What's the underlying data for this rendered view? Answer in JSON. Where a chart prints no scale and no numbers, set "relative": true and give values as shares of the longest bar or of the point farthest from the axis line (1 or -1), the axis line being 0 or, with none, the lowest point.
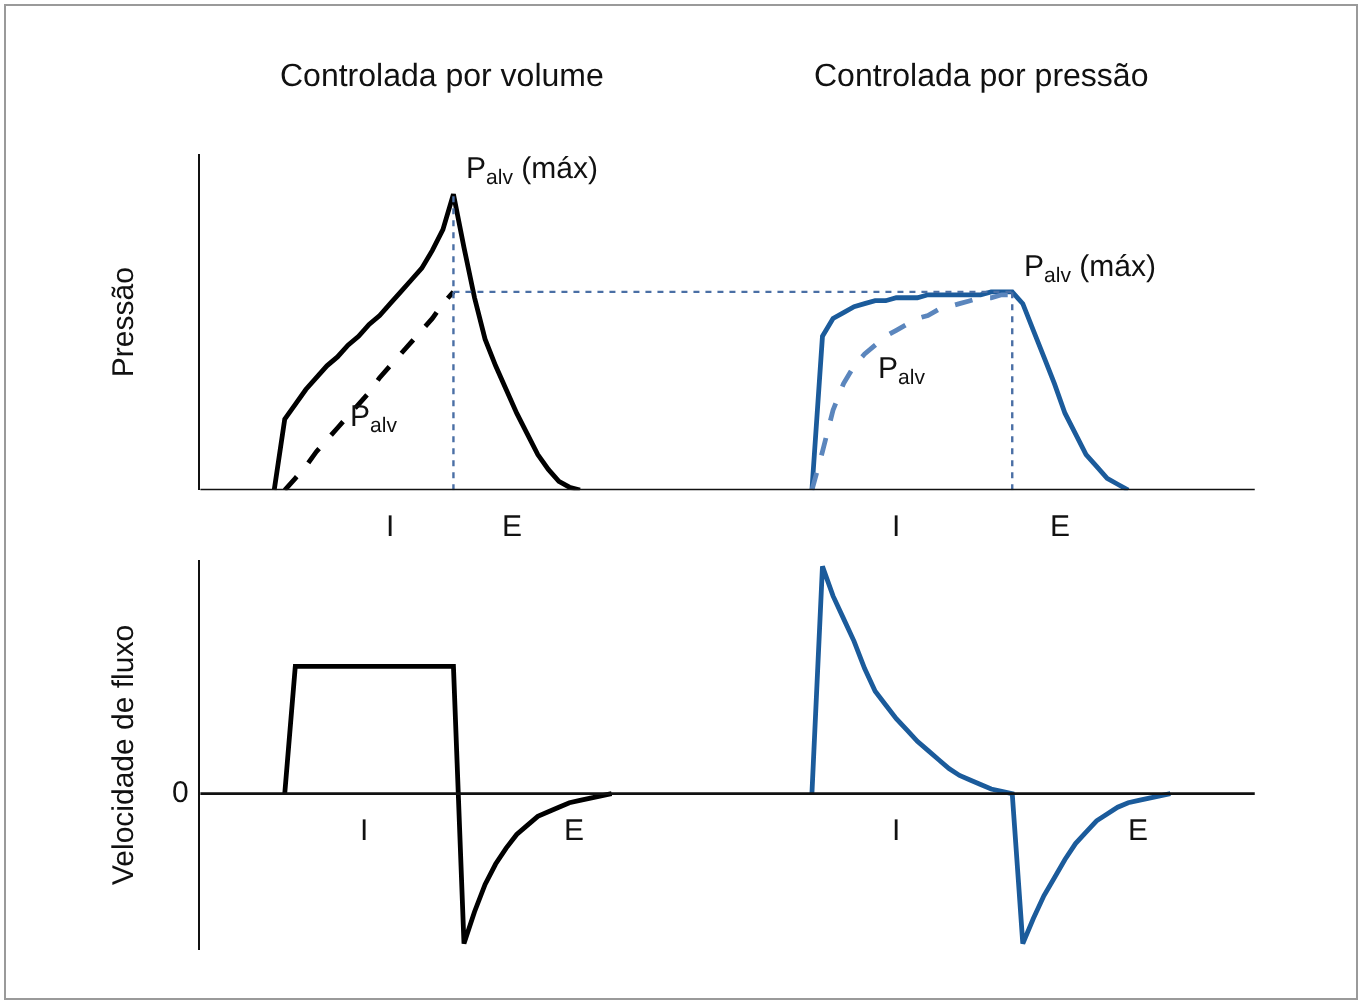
{
  "chart_data": [
    {
      "type": "line",
      "relative": true,
      "ylabel": "Pressão",
      "categories": [
        null,
        null,
        null,
        null,
        null,
        null,
        null,
        null,
        null,
        null,
        null,
        null,
        null,
        null,
        null,
        null,
        null,
        null,
        null,
        null,
        null,
        null,
        null,
        null,
        null,
        null,
        null,
        null,
        null,
        null,
        null,
        null,
        null,
        null,
        null,
        null,
        null,
        null,
        null,
        null,
        null,
        null,
        null,
        null,
        null,
        null,
        null,
        null,
        null,
        null,
        null,
        null,
        null,
        null,
        null,
        null,
        null,
        null,
        null,
        null,
        null,
        null,
        null,
        null,
        null,
        null,
        null,
        null,
        null,
        null,
        null,
        null,
        null,
        null,
        null,
        null,
        null,
        null,
        null,
        null,
        null,
        null,
        null,
        null,
        null,
        null,
        null,
        null,
        null,
        null,
        null,
        null,
        null,
        null,
        null,
        null,
        null,
        null,
        null,
        null,
        null
      ],
      "series": [
        {
          "color": "#000000",
          "line_style": "solid",
          "values": [
            null,
            null,
            null,
            null,
            null,
            null,
            null,
            0,
            0.24,
            0.29,
            0.34,
            0.38,
            0.42,
            0.45,
            0.49,
            0.52,
            0.56,
            0.59,
            0.63,
            0.67,
            0.71,
            0.75,
            0.81,
            0.88,
            1,
            0.82,
            0.65,
            0.51,
            0.42,
            0.34,
            0.26,
            0.19,
            0.12,
            0.07,
            0.03,
            0.01,
            0,
            null,
            null,
            null,
            null,
            null,
            null,
            null,
            null,
            null,
            null,
            null,
            null,
            null,
            null,
            null,
            null,
            null,
            null,
            null,
            null,
            null,
            null,
            null,
            null,
            null,
            null,
            null,
            null,
            null,
            null,
            null,
            null,
            null,
            null,
            null,
            null,
            null,
            null,
            null,
            null,
            null,
            null,
            null,
            null,
            null,
            null,
            null,
            null,
            null,
            null,
            null,
            null,
            null,
            null,
            null,
            null,
            null,
            null,
            null,
            null,
            null,
            null,
            null,
            null
          ]
        },
        {
          "color": "#000000",
          "line_style": "dashed",
          "values": [
            null,
            null,
            null,
            null,
            null,
            null,
            null,
            null,
            0,
            0.04,
            0.08,
            0.13,
            0.17,
            0.21,
            0.25,
            0.29,
            0.33,
            0.38,
            0.42,
            0.46,
            0.5,
            0.54,
            0.58,
            0.63,
            0.67,
            null,
            null,
            null,
            null,
            null,
            null,
            null,
            null,
            null,
            null,
            null,
            null,
            null,
            null,
            null,
            null,
            null,
            null,
            null,
            null,
            null,
            null,
            null,
            null,
            null,
            null,
            null,
            null,
            null,
            null,
            null,
            null,
            null,
            null,
            null,
            null,
            null,
            null,
            null,
            null,
            null,
            null,
            null,
            null,
            null,
            null,
            null,
            null,
            null,
            null,
            null,
            null,
            null,
            null,
            null,
            null,
            null,
            null,
            null,
            null,
            null,
            null,
            null,
            null,
            null,
            null,
            null,
            null,
            null,
            null,
            null,
            null,
            null,
            null,
            null,
            null
          ]
        },
        {
          "color": "#1b5b9b",
          "line_style": "solid",
          "values": [
            null,
            null,
            null,
            null,
            null,
            null,
            null,
            null,
            null,
            null,
            null,
            null,
            null,
            null,
            null,
            null,
            null,
            null,
            null,
            null,
            null,
            null,
            null,
            null,
            null,
            null,
            null,
            null,
            null,
            null,
            null,
            null,
            null,
            null,
            null,
            null,
            null,
            null,
            null,
            null,
            null,
            null,
            null,
            null,
            null,
            null,
            null,
            null,
            null,
            null,
            null,
            null,
            null,
            null,
            null,
            null,
            null,
            null,
            0,
            0.52,
            0.58,
            0.6,
            0.62,
            0.63,
            0.64,
            0.64,
            0.65,
            0.65,
            0.65,
            0.66,
            0.66,
            0.66,
            0.66,
            0.66,
            0.66,
            0.67,
            0.67,
            0.67,
            0.63,
            0.54,
            0.45,
            0.36,
            0.26,
            0.19,
            0.12,
            0.08,
            0.04,
            0.02,
            0,
            null,
            null,
            null,
            null,
            null,
            null,
            null,
            null,
            null,
            null,
            null,
            null
          ]
        },
        {
          "color": "#5b86bd",
          "line_style": "dashed",
          "values": [
            null,
            null,
            null,
            null,
            null,
            null,
            null,
            null,
            null,
            null,
            null,
            null,
            null,
            null,
            null,
            null,
            null,
            null,
            null,
            null,
            null,
            null,
            null,
            null,
            null,
            null,
            null,
            null,
            null,
            null,
            null,
            null,
            null,
            null,
            null,
            null,
            null,
            null,
            null,
            null,
            null,
            null,
            null,
            null,
            null,
            null,
            null,
            null,
            null,
            null,
            null,
            null,
            null,
            null,
            null,
            null,
            null,
            null,
            0,
            0.13,
            0.27,
            0.36,
            0.42,
            0.46,
            0.49,
            0.52,
            0.54,
            0.56,
            0.58,
            0.59,
            0.61,
            0.62,
            0.63,
            0.64,
            0.65,
            0.65,
            0.66,
            0.66,
            null,
            null,
            null,
            null,
            null,
            null,
            null,
            null,
            null,
            null,
            null,
            null,
            null,
            null,
            null,
            null,
            null,
            null,
            null,
            null,
            null,
            null,
            null
          ]
        },
        {
          "color": "#4a6fa5",
          "line_style": "dotted",
          "values": [
            null,
            null,
            null,
            null,
            null,
            null,
            null,
            null,
            null,
            null,
            null,
            null,
            null,
            null,
            null,
            null,
            null,
            null,
            null,
            null,
            null,
            null,
            null,
            null,
            0.67,
            0.67,
            0.67,
            0.67,
            0.67,
            0.67,
            0.67,
            0.67,
            0.67,
            0.67,
            0.67,
            0.67,
            0.67,
            0.67,
            0.67,
            0.67,
            0.67,
            0.67,
            0.67,
            0.67,
            0.67,
            0.67,
            0.67,
            0.67,
            0.67,
            0.67,
            0.67,
            0.67,
            0.67,
            0.67,
            0.67,
            0.67,
            0.67,
            0.67,
            0.67,
            0.67,
            0.67,
            0.67,
            0.67,
            0.67,
            0.67,
            0.67,
            0.67,
            0.67,
            0.67,
            0.67,
            0.67,
            0.67,
            0.67,
            0.67,
            0.67,
            0.67,
            0.67,
            0.67,
            null,
            null,
            null,
            null,
            null,
            null,
            null,
            null,
            null,
            null,
            null,
            null,
            null,
            null,
            null,
            null,
            null,
            null,
            null,
            null,
            null,
            null,
            null
          ]
        }
      ],
      "annotations": [
        "Controlada por volume",
        "Controlada por pressão",
        "P$_{alv}$ (máx)",
        "P$_{alv}$ (máx)",
        "P$_{alv}$",
        "P$_{alv}$",
        "I",
        "E",
        "I",
        "E"
      ]
    },
    {
      "type": "line",
      "relative": true,
      "ylabel": "Velocidade de fluxo",
      "categories": [
        null,
        null,
        null,
        null,
        null,
        null,
        null,
        null,
        null,
        null,
        null,
        null,
        null,
        null,
        null,
        null,
        null,
        null,
        null,
        null,
        null,
        null,
        null,
        null,
        null,
        null,
        null,
        null,
        null,
        null,
        null,
        null,
        null,
        null,
        null,
        null,
        null,
        null,
        null,
        null,
        null,
        null,
        null,
        null,
        null,
        null,
        null,
        null,
        null,
        null,
        null,
        null,
        null,
        null,
        null,
        null,
        null,
        null,
        null,
        null,
        null,
        null,
        null,
        null,
        null,
        null,
        null,
        null,
        null,
        null,
        null,
        null,
        null,
        null,
        null,
        null,
        null,
        null,
        null,
        null,
        null,
        null,
        null,
        null,
        null,
        null,
        null,
        null,
        null,
        null,
        null,
        null,
        null,
        null,
        null,
        null,
        null,
        null,
        null,
        null,
        null
      ],
      "series": [
        {
          "color": "#000000",
          "line_style": "solid",
          "values": [
            null,
            null,
            null,
            null,
            null,
            null,
            null,
            null,
            0,
            0.56,
            0.56,
            0.56,
            0.56,
            0.56,
            0.56,
            0.56,
            0.56,
            0.56,
            0.56,
            0.56,
            0.56,
            0.56,
            0.56,
            0.56,
            0.56,
            -0.66,
            -0.52,
            -0.4,
            -0.31,
            -0.24,
            -0.18,
            -0.14,
            -0.1,
            -0.08,
            -0.06,
            -0.04,
            -0.03,
            -0.02,
            -0.01,
            0,
            null,
            null,
            null,
            null,
            null,
            null,
            null,
            null,
            null,
            null,
            null,
            null,
            null,
            null,
            null,
            null,
            null,
            null,
            null,
            null,
            null,
            null,
            null,
            null,
            null,
            null,
            null,
            null,
            null,
            null,
            null,
            null,
            null,
            null,
            null,
            null,
            null,
            null,
            null,
            null,
            null,
            null,
            null,
            null,
            null,
            null,
            null,
            null,
            null,
            null,
            null,
            null,
            null,
            null,
            null,
            null,
            null,
            null,
            null,
            null,
            null
          ]
        },
        {
          "color": "#1b5b9b",
          "line_style": "solid",
          "values": [
            null,
            null,
            null,
            null,
            null,
            null,
            null,
            null,
            null,
            null,
            null,
            null,
            null,
            null,
            null,
            null,
            null,
            null,
            null,
            null,
            null,
            null,
            null,
            null,
            null,
            null,
            null,
            null,
            null,
            null,
            null,
            null,
            null,
            null,
            null,
            null,
            null,
            null,
            null,
            null,
            null,
            null,
            null,
            null,
            null,
            null,
            null,
            null,
            null,
            null,
            null,
            null,
            null,
            null,
            null,
            null,
            null,
            null,
            0,
            1,
            0.87,
            0.77,
            0.67,
            0.55,
            0.45,
            0.39,
            0.33,
            0.28,
            0.23,
            0.19,
            0.15,
            0.11,
            0.08,
            0.06,
            0.04,
            0.02,
            0.01,
            0,
            -0.66,
            -0.55,
            -0.45,
            -0.37,
            -0.29,
            -0.22,
            -0.17,
            -0.12,
            -0.09,
            -0.06,
            -0.04,
            -0.03,
            -0.02,
            -0.01,
            0,
            null,
            null,
            null,
            null,
            null,
            null,
            null,
            null
          ]
        }
      ],
      "annotations": [
        "0",
        "I",
        "E",
        "I",
        "E"
      ]
    }
  ]
}
